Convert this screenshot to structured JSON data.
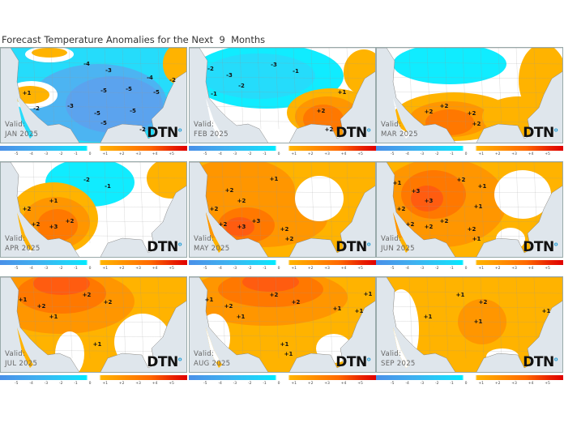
{
  "title": "Forecast Temperature Anomalies for the Next  9  Months",
  "legend": {
    "ticks": [
      "-5",
      "-4",
      "-3",
      "-2",
      "-1",
      "0",
      "+1",
      "+2",
      "+3",
      "+4",
      "+5"
    ],
    "colors": {
      "cold_max": "#4a90e8",
      "cold_min": "#00eaff",
      "neutral": "#ffffff",
      "warm_min": "#ffb300",
      "warm_max": "#e00000"
    }
  },
  "logo_text": "DTN",
  "valid_label": "Valid:",
  "panels": [
    {
      "month": "JAN  2025",
      "anomaly_labels": [
        "-4",
        "-3",
        "-4",
        "-2",
        "-5",
        "-5",
        "-5",
        "+1",
        "-2",
        "-3",
        "-5",
        "-5",
        "-5",
        "-2"
      ]
    },
    {
      "month": "FEB  2025",
      "anomaly_labels": [
        "-2",
        "-3",
        "-3",
        "-1",
        "-2",
        "-1",
        "+1",
        "+2",
        "+2"
      ]
    },
    {
      "month": "MAR  2025",
      "anomaly_labels": [
        "+2",
        "+2",
        "+2",
        "+2"
      ]
    },
    {
      "month": "APR  2025",
      "anomaly_labels": [
        "-2",
        "-1",
        "+1",
        "+2",
        "+2",
        "+3",
        "+2"
      ]
    },
    {
      "month": "MAY  2025",
      "anomaly_labels": [
        "+1",
        "+2",
        "+2",
        "+2",
        "+2",
        "+3",
        "+3",
        "+2",
        "+2"
      ]
    },
    {
      "month": "JUN  2025",
      "anomaly_labels": [
        "+1",
        "+2",
        "+1",
        "+3",
        "+3",
        "+1",
        "+2",
        "+2",
        "+2",
        "+2",
        "+2",
        "+1"
      ]
    },
    {
      "month": "JUL  2025",
      "anomaly_labels": [
        "+1",
        "+2",
        "+2",
        "+2",
        "+1",
        "+1"
      ]
    },
    {
      "month": "AUG  2025",
      "anomaly_labels": [
        "+1",
        "+2",
        "+2",
        "+2",
        "+1",
        "+1",
        "+1",
        "+1",
        "+1",
        "+1"
      ]
    },
    {
      "month": "SEP  2025",
      "anomaly_labels": [
        "+1",
        "+2",
        "+1",
        "+1",
        "+1"
      ]
    }
  ]
}
